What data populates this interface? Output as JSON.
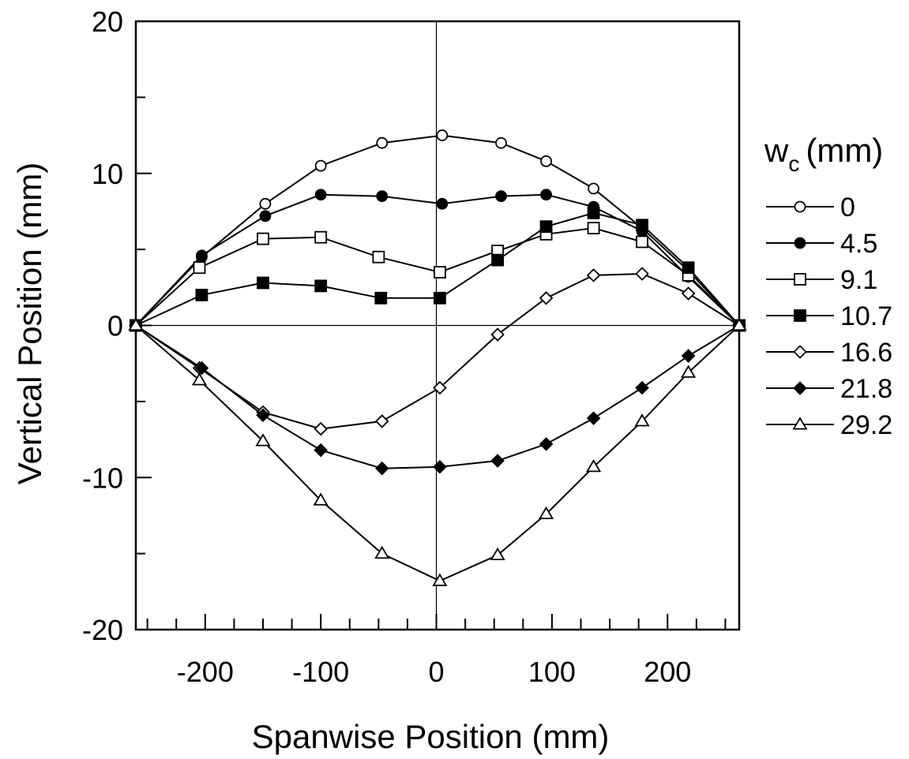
{
  "chart_data": {
    "type": "line",
    "xlabel": "Spanwise Position (mm)",
    "ylabel": "Vertical Position (mm)",
    "xlim": [
      -260,
      262
    ],
    "ylim": [
      -20,
      20
    ],
    "xticks": [
      -200,
      -100,
      0,
      100,
      200
    ],
    "yticks": [
      -20,
      -10,
      0,
      10,
      20
    ],
    "xtick_labels": [
      "-200",
      "-100",
      "0",
      "100",
      "200"
    ],
    "ytick_labels": [
      "-20",
      "-10",
      "0",
      "10",
      "20"
    ],
    "grid": false,
    "zero_lines": true,
    "legend": {
      "title_main": "w",
      "title_sub": "c",
      "title_unit": "(mm)",
      "placement": "right"
    },
    "series": [
      {
        "name": "0",
        "marker": "circle-open",
        "points": [
          [
            -260,
            0
          ],
          [
            -203,
            4.5
          ],
          [
            -148,
            8.0
          ],
          [
            -100,
            10.5
          ],
          [
            -47,
            12.0
          ],
          [
            5,
            12.5
          ],
          [
            56,
            12.0
          ],
          [
            95,
            10.8
          ],
          [
            136,
            9.0
          ],
          [
            178,
            6.4
          ],
          [
            218,
            3.6
          ],
          [
            262,
            0
          ]
        ]
      },
      {
        "name": "4.5",
        "marker": "circle-filled",
        "points": [
          [
            -260,
            0
          ],
          [
            -203,
            4.6
          ],
          [
            -148,
            7.2
          ],
          [
            -100,
            8.6
          ],
          [
            -47,
            8.5
          ],
          [
            5,
            8.0
          ],
          [
            56,
            8.5
          ],
          [
            95,
            8.6
          ],
          [
            136,
            7.8
          ],
          [
            178,
            6.2
          ],
          [
            218,
            3.2
          ],
          [
            262,
            0
          ]
        ]
      },
      {
        "name": "9.1",
        "marker": "square-open",
        "points": [
          [
            -260,
            0
          ],
          [
            -205,
            3.8
          ],
          [
            -150,
            5.7
          ],
          [
            -100,
            5.8
          ],
          [
            -50,
            4.5
          ],
          [
            3,
            3.5
          ],
          [
            53,
            4.9
          ],
          [
            95,
            6.0
          ],
          [
            136,
            6.4
          ],
          [
            178,
            5.5
          ],
          [
            218,
            3.3
          ],
          [
            262,
            0
          ]
        ]
      },
      {
        "name": "10.7",
        "marker": "square-filled",
        "points": [
          [
            -260,
            0
          ],
          [
            -203,
            2.0
          ],
          [
            -150,
            2.8
          ],
          [
            -100,
            2.6
          ],
          [
            -48,
            1.8
          ],
          [
            3,
            1.8
          ],
          [
            53,
            4.3
          ],
          [
            95,
            6.5
          ],
          [
            136,
            7.4
          ],
          [
            178,
            6.6
          ],
          [
            218,
            3.8
          ],
          [
            262,
            0
          ]
        ]
      },
      {
        "name": "16.6",
        "marker": "diamond-open",
        "points": [
          [
            -260,
            0
          ],
          [
            -205,
            -2.8
          ],
          [
            -150,
            -5.7
          ],
          [
            -100,
            -6.8
          ],
          [
            -47,
            -6.3
          ],
          [
            3,
            -4.1
          ],
          [
            53,
            -0.6
          ],
          [
            95,
            1.8
          ],
          [
            136,
            3.3
          ],
          [
            178,
            3.4
          ],
          [
            218,
            2.1
          ],
          [
            262,
            0
          ]
        ]
      },
      {
        "name": "21.8",
        "marker": "diamond-filled",
        "points": [
          [
            -260,
            0
          ],
          [
            -203,
            -2.8
          ],
          [
            -150,
            -5.9
          ],
          [
            -100,
            -8.2
          ],
          [
            -47,
            -9.4
          ],
          [
            3,
            -9.3
          ],
          [
            53,
            -8.9
          ],
          [
            95,
            -7.8
          ],
          [
            136,
            -6.1
          ],
          [
            178,
            -4.1
          ],
          [
            218,
            -2.0
          ],
          [
            262,
            0
          ]
        ]
      },
      {
        "name": "29.2",
        "marker": "triangle-open",
        "points": [
          [
            -260,
            0
          ],
          [
            -205,
            -3.6
          ],
          [
            -150,
            -7.6
          ],
          [
            -100,
            -11.5
          ],
          [
            -47,
            -15.0
          ],
          [
            3,
            -16.8
          ],
          [
            53,
            -15.1
          ],
          [
            95,
            -12.4
          ],
          [
            136,
            -9.3
          ],
          [
            178,
            -6.3
          ],
          [
            218,
            -3.1
          ],
          [
            262,
            0
          ]
        ]
      }
    ]
  }
}
